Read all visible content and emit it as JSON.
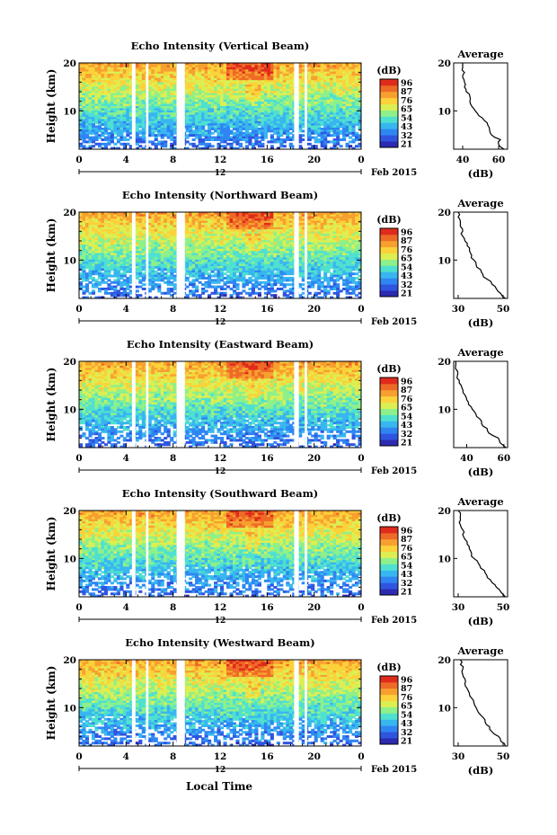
{
  "chart_data": {
    "type": "heatmap",
    "colorbar": {
      "unit": "(dB)",
      "ticks": [
        "96",
        "87",
        "76",
        "65",
        "54",
        "43",
        "32",
        "21"
      ],
      "colors": [
        "#2c2ab0",
        "#2f55e0",
        "#2f86f2",
        "#39b6f0",
        "#4fe0d0",
        "#8ef08a",
        "#dcef52",
        "#fbd23a",
        "#f7a030",
        "#ee6a26",
        "#e02b1c"
      ]
    },
    "x_axis": {
      "ticks": [
        "0",
        "4",
        "8",
        "12",
        "16",
        "20",
        "0"
      ],
      "range": [
        0,
        24
      ],
      "date_label": "12",
      "month_label": "Feb 2015",
      "title": "Local Time"
    },
    "y_axis": {
      "title": "Height (km)",
      "ticks": [
        "20",
        "10"
      ],
      "range": [
        2,
        20
      ]
    },
    "data_gaps_hours": [
      [
        4.5,
        4.8
      ],
      [
        5.7,
        5.9
      ],
      [
        8.3,
        9.0
      ],
      [
        18.3,
        18.7
      ],
      [
        19.2,
        19.4
      ]
    ],
    "average_panel": {
      "title": "Average",
      "xlabel": "(dB)",
      "yticks": [
        "20",
        "10"
      ]
    },
    "panels": [
      {
        "title": "Echo Intensity (Vertical Beam)",
        "avg_xticks": [
          "40",
          "60"
        ],
        "avg_xrange": [
          35,
          65
        ],
        "avg_profile": {
          "height": [
            2,
            3,
            4,
            5,
            6,
            7,
            8,
            9,
            10,
            11,
            12,
            13,
            14,
            15,
            16,
            17,
            18,
            19,
            20
          ],
          "db": [
            63,
            60,
            61,
            56,
            55,
            54,
            52,
            49,
            47,
            45,
            44,
            44,
            42,
            41,
            41,
            40,
            41,
            40,
            40
          ]
        }
      },
      {
        "title": "Echo Intensity (Northward Beam)",
        "avg_xticks": [
          "30",
          "50"
        ],
        "avg_xrange": [
          28,
          52
        ],
        "avg_profile": {
          "height": [
            2,
            3,
            4,
            5,
            6,
            7,
            8,
            9,
            10,
            11,
            12,
            13,
            14,
            15,
            16,
            17,
            18,
            19,
            20
          ],
          "db": [
            51,
            49,
            47,
            45,
            43,
            41,
            40,
            38,
            37,
            36,
            35,
            34,
            33,
            32,
            32,
            31,
            31,
            30,
            30
          ]
        }
      },
      {
        "title": "Echo Intensity (Eastward Beam)",
        "avg_xticks": [
          "40",
          "60"
        ],
        "avg_xrange": [
          33,
          62
        ],
        "avg_profile": {
          "height": [
            2,
            3,
            4,
            5,
            6,
            7,
            8,
            9,
            10,
            11,
            12,
            13,
            14,
            15,
            16,
            17,
            18,
            19,
            20
          ],
          "db": [
            61,
            58,
            57,
            52,
            51,
            48,
            47,
            45,
            43,
            41,
            40,
            39,
            38,
            37,
            36,
            35,
            35,
            34,
            34
          ]
        }
      },
      {
        "title": "Echo Intensity (Southward Beam)",
        "avg_xticks": [
          "30",
          "50"
        ],
        "avg_xrange": [
          28,
          52
        ],
        "avg_profile": {
          "height": [
            2,
            3,
            4,
            5,
            6,
            7,
            8,
            9,
            10,
            11,
            12,
            13,
            14,
            15,
            16,
            17,
            18,
            19,
            20
          ],
          "db": [
            51,
            49,
            47,
            45,
            43,
            42,
            40,
            39,
            37,
            36,
            35,
            34,
            33,
            32,
            32,
            31,
            31,
            31,
            30
          ]
        }
      },
      {
        "title": "Echo Intensity (Westward Beam)",
        "avg_xticks": [
          "30",
          "50"
        ],
        "avg_xrange": [
          28,
          52
        ],
        "avg_profile": {
          "height": [
            2,
            3,
            4,
            5,
            6,
            7,
            8,
            9,
            10,
            11,
            12,
            13,
            14,
            15,
            16,
            17,
            18,
            19,
            20
          ],
          "db": [
            51,
            49,
            48,
            45,
            44,
            42,
            41,
            39,
            38,
            37,
            36,
            35,
            34,
            33,
            33,
            32,
            32,
            31,
            31
          ]
        }
      }
    ]
  }
}
